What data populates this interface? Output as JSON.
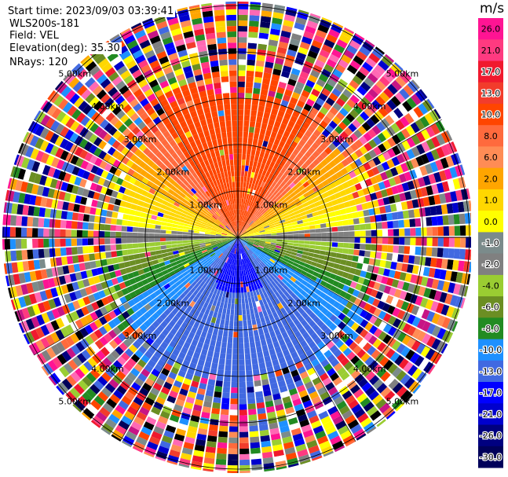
{
  "header": {
    "start_time": "Start time: 2023/09/03 03:39:41",
    "instrument": "WLS200s-181",
    "field": "Field: VEL",
    "elevation": "Elevation(deg): 35.30",
    "nrays": "NRays: 120"
  },
  "colorbar": {
    "unit": "m/s",
    "ticks": [
      "26.0",
      "21.0",
      "17.0",
      "13.0",
      "10.0",
      "8.0",
      "6.0",
      "2.0",
      "1.0",
      "0.0",
      "-1.0",
      "-2.0",
      "-4.0",
      "-6.0",
      "-8.0",
      "-10.0",
      "-13.0",
      "-17.0",
      "-21.0",
      "-26.0",
      "-30.0"
    ],
    "bins": [
      {
        "color": "#ff1493"
      },
      {
        "color": "#ff3a80"
      },
      {
        "color": "#f0192e"
      },
      {
        "color": "#f23c2c"
      },
      {
        "color": "#ff4500"
      },
      {
        "color": "#ff6a3d"
      },
      {
        "color": "#ff8c55"
      },
      {
        "color": "#ffa500"
      },
      {
        "color": "#ffd700"
      },
      {
        "color": "#ffff00"
      },
      {
        "color": "#7b8b8b"
      },
      {
        "color": "#808080"
      },
      {
        "color": "#9acd32"
      },
      {
        "color": "#6b8e23"
      },
      {
        "color": "#228b22"
      },
      {
        "color": "#1e90ff"
      },
      {
        "color": "#4169e1"
      },
      {
        "color": "#0000ff"
      },
      {
        "color": "#0000cd"
      },
      {
        "color": "#000080"
      },
      {
        "color": "#00005a"
      }
    ]
  },
  "range_rings": {
    "labels": [
      "1.00km",
      "2.00km",
      "3.00km",
      "4.00km",
      "5.00km"
    ],
    "values_km": [
      1,
      2,
      3,
      4,
      5
    ]
  }
}
